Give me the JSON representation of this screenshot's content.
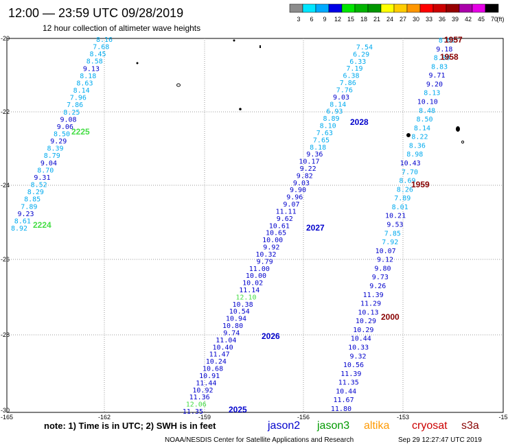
{
  "header": {
    "title": "12:00 — 23:59 UTC 09/28/2019",
    "subtitle": "12 hour collection of altimeter wave heights"
  },
  "color_scale": {
    "values": [
      "3",
      "6",
      "9",
      "12",
      "15",
      "18",
      "21",
      "24",
      "27",
      "30",
      "33",
      "36",
      "39",
      "42",
      "45",
      "70"
    ],
    "unit": "(ft)",
    "colors": [
      "#8c8c8c",
      "#00e6ff",
      "#00aaff",
      "#0000e6",
      "#00e600",
      "#00b400",
      "#009600",
      "#ffff00",
      "#ffcc00",
      "#ff9600",
      "#ff0000",
      "#cc0000",
      "#960000",
      "#aa00aa",
      "#e600e6",
      "#000000"
    ]
  },
  "axes": {
    "lon_ticks": [
      "-165",
      "-162",
      "-159",
      "-156",
      "-153",
      "-15"
    ],
    "lat_ticks": [
      "-20",
      "-22",
      "-24",
      "-26",
      "-28",
      "-30"
    ]
  },
  "satellite_colors": {
    "jason2": "#0000cc",
    "jason3": "#009900",
    "altika": "#ff9900",
    "cryosat": "#cc0000",
    "s3a": "#880000",
    "light": "#00aaee",
    "green": "#44dd44"
  },
  "tracks": [
    {
      "id": "2224-2225",
      "tag_color": "green",
      "values": [
        "8.16",
        "7.68",
        "8.45",
        "8.58",
        "9.13",
        "8.18",
        "8.63",
        "8.14",
        "7.96",
        "7.86",
        "8.25",
        "9.08",
        "9.06",
        "8.50",
        "9.29",
        "8.39",
        "8.79",
        "9.04",
        "8.70",
        "9.31",
        "8.52",
        "8.29",
        "8.85",
        "7.89",
        "9.23",
        "8.61",
        "8.92"
      ],
      "colors": [
        "light",
        "light",
        "light",
        "light",
        "blue",
        "light",
        "light",
        "light",
        "light",
        "light",
        "light",
        "blue",
        "blue",
        "light",
        "blue",
        "light",
        "light",
        "blue",
        "light",
        "blue",
        "light",
        "light",
        "light",
        "light",
        "blue",
        "light",
        "light"
      ]
    },
    {
      "id": "2025-2028",
      "values": [
        "7.54",
        "6.29",
        "6.33",
        "7.19",
        "6.38",
        "7.86",
        "7.76",
        "9.03",
        "8.14",
        "6.93",
        "8.89",
        "8.10",
        "7.63",
        "7.65",
        "8.18",
        "9.36",
        "10.17",
        "9.22",
        "9.82",
        "9.03",
        "9.90",
        "9.96",
        "9.07",
        "11.11",
        "9.62",
        "10.61",
        "10.65",
        "10.00",
        "9.92",
        "10.32",
        "9.79",
        "11.00",
        "10.00",
        "10.02",
        "11.14",
        "12.10",
        "10.38",
        "10.54",
        "10.94",
        "10.80",
        "9.74",
        "11.04",
        "10.40",
        "11.47",
        "10.24",
        "10.68",
        "10.91",
        "11.44",
        "10.92",
        "11.36",
        "12.06",
        "11.35"
      ],
      "colors": [
        "light",
        "light",
        "light",
        "light",
        "light",
        "light",
        "light",
        "blue",
        "light",
        "light",
        "light",
        "light",
        "light",
        "light",
        "light",
        "blue",
        "blue",
        "blue",
        "blue",
        "blue",
        "blue",
        "blue",
        "blue",
        "blue",
        "blue",
        "blue",
        "blue",
        "blue",
        "blue",
        "blue",
        "blue",
        "blue",
        "blue",
        "blue",
        "blue",
        "green",
        "blue",
        "blue",
        "blue",
        "blue",
        "blue",
        "blue",
        "blue",
        "blue",
        "blue",
        "blue",
        "blue",
        "blue",
        "blue",
        "blue",
        "green",
        "blue"
      ]
    },
    {
      "id": "1957-2000",
      "values": [
        "8.62",
        "9.18",
        "8.80",
        "8.83",
        "9.71",
        "9.20",
        "8.13",
        "10.10",
        "8.48",
        "8.50",
        "8.14",
        "8.22",
        "8.36",
        "8.98",
        "10.43",
        "7.70",
        "8.69",
        "8.26",
        "7.89",
        "8.01",
        "10.21",
        "9.53",
        "7.85",
        "7.92",
        "10.07",
        "9.12",
        "9.80",
        "9.73",
        "9.26",
        "11.39",
        "11.29",
        "10.13",
        "10.29",
        "10.29",
        "10.44",
        "10.33",
        "9.32",
        "10.56",
        "11.39",
        "11.35",
        "10.44",
        "11.67",
        "11.80"
      ],
      "colors": [
        "light",
        "blue",
        "light",
        "light",
        "blue",
        "blue",
        "light",
        "blue",
        "light",
        "light",
        "light",
        "light",
        "light",
        "light",
        "blue",
        "light",
        "light",
        "light",
        "light",
        "light",
        "blue",
        "blue",
        "light",
        "light",
        "blue",
        "blue",
        "blue",
        "blue",
        "blue",
        "blue",
        "blue",
        "blue",
        "blue",
        "blue",
        "blue",
        "blue",
        "blue",
        "blue",
        "blue",
        "blue",
        "blue",
        "blue",
        "blue"
      ]
    }
  ],
  "pass_labels": [
    {
      "text": "2225",
      "color": "green"
    },
    {
      "text": "2224",
      "color": "green"
    },
    {
      "text": "2028",
      "color": "jason2"
    },
    {
      "text": "2027",
      "color": "jason2"
    },
    {
      "text": "2026",
      "color": "jason2"
    },
    {
      "text": "2025",
      "color": "jason2"
    },
    {
      "text": "1957",
      "color": "s3a"
    },
    {
      "text": "1958",
      "color": "s3a"
    },
    {
      "text": "1959",
      "color": "s3a"
    },
    {
      "text": "2000",
      "color": "s3a"
    }
  ],
  "footer": {
    "note": "note: 1) Time is in UTC; 2) SWH is in feet",
    "legend": [
      {
        "text": "jason2",
        "color": "jason2"
      },
      {
        "text": "jason3",
        "color": "jason3"
      },
      {
        "text": "altika",
        "color": "altika"
      },
      {
        "text": "cryosat",
        "color": "cryosat"
      },
      {
        "text": "s3a",
        "color": "s3a"
      }
    ],
    "credit": "NOAA/NESDIS Center for Satellite Applications and Research",
    "timestamp": "Sep 29 12:27:47 UTC 2019"
  }
}
